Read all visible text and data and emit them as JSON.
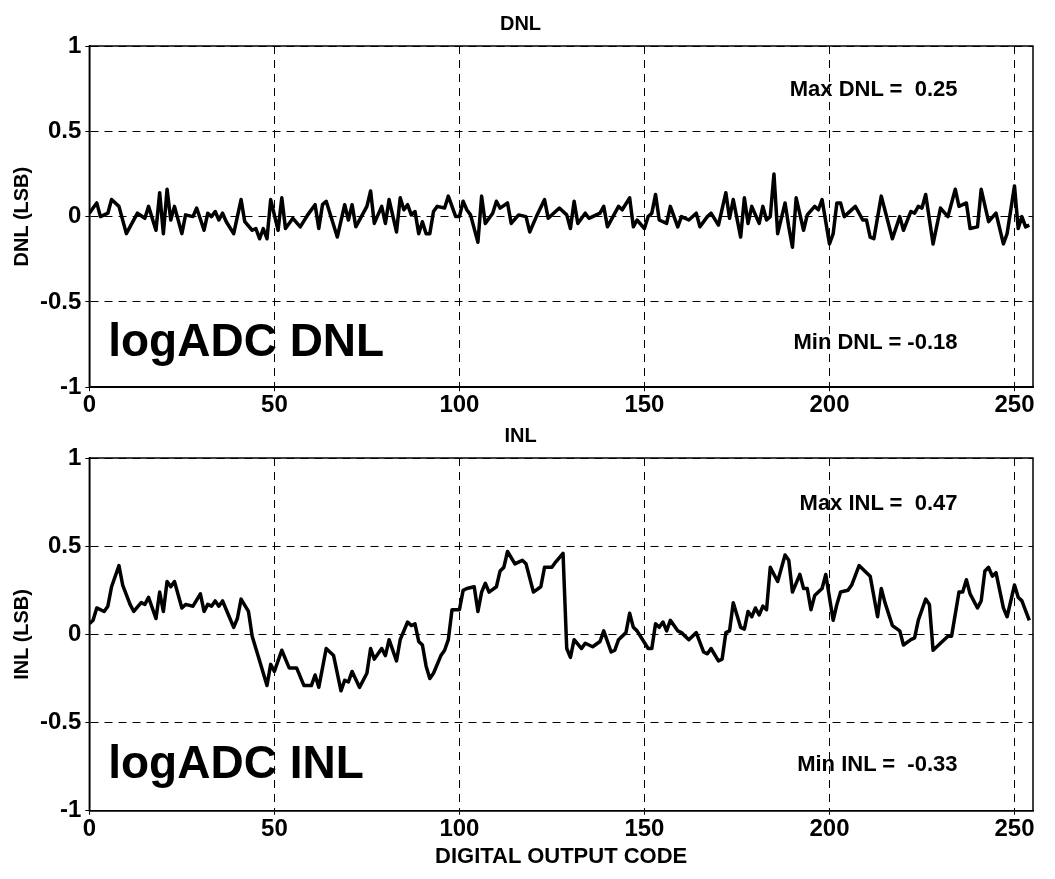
{
  "chart_data": [
    {
      "type": "line",
      "title": "DNL",
      "ylabel": "DNL (LSB)",
      "xlim": [
        0,
        255
      ],
      "xticks": [
        0,
        50,
        100,
        150,
        200,
        250
      ],
      "ylim": [
        -1,
        1
      ],
      "yticks": [
        -1,
        -0.5,
        0,
        0.5,
        1
      ],
      "grid": true,
      "marker": "none",
      "line_style": "solid",
      "color": "#000000",
      "annotations": [
        "Max DNL =  0.25",
        "Min DNL = -0.18",
        "logADC DNL"
      ],
      "x": [
        0,
        1,
        2,
        3,
        5,
        6,
        8,
        10,
        13,
        15,
        16,
        18,
        19,
        20,
        21,
        22,
        23,
        25,
        26,
        28,
        29,
        31,
        32,
        33,
        34,
        35,
        36,
        37,
        39,
        41,
        42,
        44,
        45,
        46,
        47,
        48,
        49,
        51,
        52,
        53,
        55,
        57,
        59,
        61,
        62,
        63,
        64,
        67,
        69,
        70,
        71,
        72,
        75,
        76,
        77,
        79,
        80,
        81,
        83,
        84,
        85,
        86,
        87,
        88,
        89,
        90,
        91,
        92,
        93,
        94,
        96,
        97,
        99,
        100,
        101,
        102,
        103,
        105,
        106,
        107,
        109,
        110,
        111,
        113,
        114,
        116,
        118,
        119,
        121,
        123,
        124,
        127,
        129,
        130,
        131,
        132,
        134,
        135,
        138,
        139,
        140,
        143,
        144,
        146,
        147,
        148,
        150,
        151,
        152,
        153,
        154,
        156,
        157,
        159,
        160,
        162,
        164,
        165,
        167,
        168,
        170,
        172,
        173,
        174,
        176,
        177,
        178,
        179,
        181,
        182,
        183,
        184,
        185,
        186,
        188,
        189,
        190,
        191,
        193,
        194,
        196,
        197,
        198,
        200,
        201,
        202,
        203,
        204,
        207,
        209,
        210,
        211,
        212,
        214,
        217,
        219,
        220,
        222,
        223,
        224,
        225,
        226,
        228,
        230,
        232,
        234,
        235,
        237,
        238,
        240,
        241,
        243,
        245,
        247,
        248,
        250,
        251,
        252,
        253,
        254
      ],
      "values": [
        0.02,
        0.05,
        0.08,
        0,
        0.02,
        0.1,
        0.06,
        -0.1,
        0.02,
        -0.01,
        0.06,
        -0.08,
        0.14,
        -0.1,
        0.16,
        -0.02,
        0.06,
        -0.1,
        0.01,
        0,
        0.05,
        -0.08,
        0.02,
        0,
        0.03,
        -0.02,
        0.02,
        -0.03,
        -0.1,
        0.1,
        -0.03,
        -0.08,
        -0.07,
        -0.13,
        -0.07,
        -0.13,
        0.1,
        -0.08,
        0.11,
        -0.07,
        -0.01,
        -0.06,
        0.01,
        0.07,
        -0.07,
        0.07,
        0.09,
        -0.12,
        0.07,
        -0.02,
        0.07,
        -0.06,
        0.06,
        0.15,
        -0.04,
        0.06,
        -0.04,
        0.1,
        -0.09,
        0.11,
        0.04,
        0.07,
        0.01,
        0.03,
        -0.1,
        -0.03,
        -0.1,
        -0.1,
        0.03,
        0.06,
        0.05,
        0.12,
        0,
        0,
        0.09,
        0.04,
        0.01,
        -0.15,
        0.12,
        -0.04,
        0.02,
        0.09,
        0.05,
        0.08,
        -0.04,
        0.01,
        0,
        -0.09,
        0.01,
        0.1,
        -0.01,
        0.05,
        0.01,
        -0.07,
        0.09,
        -0.04,
        0.02,
        -0.01,
        0.02,
        0.06,
        -0.06,
        0.06,
        0.04,
        0.11,
        -0.06,
        -0.02,
        -0.07,
        0,
        0.02,
        0.13,
        -0.02,
        -0.04,
        0.06,
        -0.06,
        0,
        -0.02,
        0.02,
        -0.06,
        0,
        0.02,
        -0.05,
        0.14,
        -0.01,
        0.1,
        -0.12,
        0.11,
        -0.04,
        0.06,
        -0.04,
        0.06,
        -0.02,
        0,
        0.25,
        -0.1,
        0.08,
        -0.06,
        -0.18,
        0.11,
        -0.08,
        0.01,
        0.06,
        0.04,
        0.1,
        -0.16,
        -0.1,
        0.08,
        0.08,
        0,
        0.06,
        -0.02,
        -0.02,
        -0.12,
        -0.13,
        0.12,
        -0.13,
        0,
        -0.08,
        0.03,
        0.02,
        0.06,
        0.05,
        0.13,
        -0.16,
        0.05,
        0,
        0.16,
        0.06,
        0.08,
        -0.07,
        -0.06,
        0.16,
        -0.03,
        0.02,
        -0.16,
        -0.1,
        0.18,
        -0.07,
        0,
        -0.06,
        -0.05
      ]
    },
    {
      "type": "line",
      "title": "INL",
      "xlabel": "DIGITAL OUTPUT CODE",
      "ylabel": "INL (LSB)",
      "xlim": [
        0,
        255
      ],
      "xticks": [
        0,
        50,
        100,
        150,
        200,
        250
      ],
      "ylim": [
        -1,
        1
      ],
      "yticks": [
        -1,
        -0.5,
        0,
        0.5,
        1
      ],
      "grid": true,
      "marker": "none",
      "line_style": "solid",
      "color": "#000000",
      "annotations": [
        "Max INL =  0.47",
        "Min INL =  -0.33",
        "logADC INL"
      ],
      "x": [
        0,
        1,
        2,
        4,
        5,
        6,
        8,
        9,
        11,
        12,
        14,
        15,
        16,
        18,
        19,
        20,
        21,
        22,
        23,
        25,
        26,
        28,
        30,
        31,
        32,
        33,
        34,
        35,
        36,
        37,
        39,
        40,
        41,
        43,
        44,
        46,
        48,
        49,
        50,
        52,
        54,
        56,
        58,
        60,
        61,
        62,
        64,
        66,
        68,
        69,
        70,
        71,
        73,
        75,
        76,
        77,
        79,
        80,
        81,
        83,
        84,
        86,
        87,
        88,
        89,
        90,
        91,
        92,
        93,
        95,
        96,
        97,
        98,
        100,
        101,
        102,
        104,
        105,
        106,
        107,
        108,
        110,
        111,
        112,
        113,
        115,
        117,
        118,
        120,
        122,
        123,
        125,
        126,
        128,
        129,
        130,
        131,
        133,
        134,
        136,
        138,
        139,
        141,
        142,
        143,
        145,
        146,
        147,
        148,
        151,
        152,
        153,
        154,
        155,
        156,
        157,
        159,
        160,
        162,
        164,
        166,
        167,
        168,
        170,
        171,
        172,
        173,
        174,
        176,
        177,
        178,
        179,
        180,
        181,
        182,
        183,
        184,
        186,
        188,
        189,
        190,
        192,
        193,
        194,
        195,
        196,
        198,
        199,
        201,
        202,
        203,
        205,
        206,
        208,
        211,
        213,
        214,
        215,
        217,
        219,
        220,
        222,
        223,
        224,
        226,
        227,
        228,
        230,
        232,
        233,
        235,
        236,
        237,
        238,
        240,
        241,
        242,
        243,
        244,
        245,
        247,
        248,
        250,
        251,
        252,
        254
      ],
      "values": [
        0.06,
        0.08,
        0.15,
        0.13,
        0.16,
        0.27,
        0.39,
        0.28,
        0.17,
        0.13,
        0.18,
        0.17,
        0.21,
        0.09,
        0.24,
        0.13,
        0.3,
        0.27,
        0.3,
        0.15,
        0.17,
        0.16,
        0.23,
        0.13,
        0.17,
        0.16,
        0.19,
        0.16,
        0.19,
        0.14,
        0.04,
        0.09,
        0.2,
        0.13,
        -0.01,
        -0.15,
        -0.29,
        -0.17,
        -0.21,
        -0.09,
        -0.19,
        -0.19,
        -0.29,
        -0.29,
        -0.23,
        -0.3,
        -0.08,
        -0.12,
        -0.32,
        -0.26,
        -0.27,
        -0.21,
        -0.3,
        -0.22,
        -0.08,
        -0.14,
        -0.08,
        -0.12,
        -0.03,
        -0.15,
        -0.03,
        0.07,
        0.05,
        0.06,
        -0.04,
        -0.06,
        -0.18,
        -0.25,
        -0.22,
        -0.12,
        -0.09,
        -0.03,
        0.14,
        0.14,
        0.25,
        0.26,
        0.27,
        0.13,
        0.24,
        0.29,
        0.24,
        0.27,
        0.36,
        0.38,
        0.47,
        0.4,
        0.42,
        0.4,
        0.24,
        0.27,
        0.38,
        0.38,
        0.41,
        0.46,
        -0.08,
        -0.13,
        -0.03,
        -0.08,
        -0.05,
        -0.07,
        -0.04,
        0.02,
        -0.1,
        -0.09,
        -0.03,
        0.01,
        0.12,
        0.04,
        0.02,
        -0.08,
        -0.08,
        0.06,
        0.04,
        0.07,
        0.02,
        0.08,
        0.02,
        0.01,
        -0.03,
        0.01,
        -0.1,
        -0.11,
        -0.08,
        -0.15,
        -0.14,
        0.01,
        0.02,
        0.18,
        0.04,
        0.03,
        0.13,
        0.1,
        0.15,
        0.11,
        0.16,
        0.14,
        0.38,
        0.3,
        0.45,
        0.42,
        0.24,
        0.34,
        0.26,
        0.26,
        0.14,
        0.22,
        0.26,
        0.34,
        0.08,
        0.17,
        0.24,
        0.25,
        0.28,
        0.39,
        0.33,
        0.1,
        0.26,
        0.18,
        0.05,
        0.02,
        -0.06,
        -0.03,
        -0.02,
        0.08,
        0.2,
        0.17,
        -0.09,
        -0.05,
        -0.01,
        -0.01,
        0.24,
        0.24,
        0.31,
        0.23,
        0.15,
        0.19,
        0.36,
        0.38,
        0.33,
        0.35,
        0.15,
        0.1,
        0.28,
        0.21,
        0.19,
        0.08
      ]
    }
  ]
}
